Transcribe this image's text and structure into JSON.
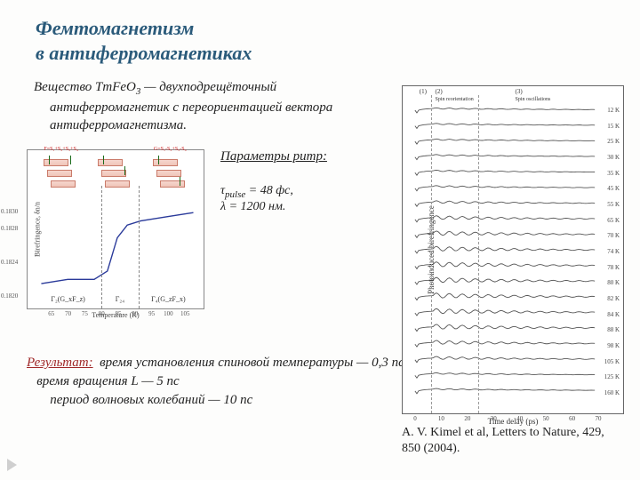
{
  "title": {
    "line1": "Фемтомагнетизм",
    "line2": "в антиферромагнетиках"
  },
  "substance_text": {
    "prefix": "Вещество TmFeO",
    "sub": "3",
    "suffix": " — двухподрещёточный антиферромагнетик с переориентацией вектора антиферромагнетизма."
  },
  "pump": {
    "heading": "Параметры pump:",
    "tau_label": "τ",
    "tau_sub": "pulse",
    "tau_val": " = 48 фс,",
    "lambda": "λ = 1200 нм."
  },
  "result": {
    "label": "Результат:",
    "line1": "время установления спиновой температуры —  0,3 пс",
    "line2": "время вращения L —  5 пс",
    "line3": "период волновых колебаний  — 10 пс"
  },
  "citation": "A. V. Kimel et al, Letters to Nature, 429, 850 (2004).",
  "left_chart": {
    "type": "line",
    "ylabel": "Birefringence, δn/n",
    "xlabel": "Temperature (K)",
    "xlim": [
      60,
      110
    ],
    "ylim": [
      0.182,
      0.1832
    ],
    "xticks": [
      65,
      70,
      75,
      80,
      85,
      90,
      95,
      100,
      105
    ],
    "yticks": [
      0.182,
      0.1824,
      0.1828,
      0.183
    ],
    "data_x": [
      62,
      70,
      78,
      82,
      85,
      88,
      92,
      100,
      108
    ],
    "data_y": [
      0.18215,
      0.1822,
      0.1822,
      0.1823,
      0.1827,
      0.18285,
      0.1829,
      0.18295,
      0.183
    ],
    "line_color": "#2a3a9a",
    "vdash_positions_K": [
      80,
      91
    ],
    "region_labels": [
      "Γ₂(G_xF_z)",
      "Γ₂₄",
      "Γ₄(G_zF_x)"
    ],
    "region_label_x_K": [
      70,
      85.5,
      100
    ],
    "diagram_top_labels": [
      "F=S₁+S₂+S₃+S₄",
      "",
      "G=S₁-S₂+S₃-S₄"
    ],
    "box_color": "#e8a998",
    "arrow_color": "#1a6b1a"
  },
  "right_chart": {
    "type": "line-stack",
    "ylabel": "Photoinduced birefringence",
    "xlabel": "Time delay (ps)",
    "xlim": [
      0,
      70
    ],
    "xticks": [
      0,
      10,
      20,
      30,
      40,
      50,
      60,
      70
    ],
    "temperatures_K": [
      12,
      15,
      25,
      30,
      35,
      45,
      55,
      65,
      70,
      74,
      78,
      80,
      82,
      84,
      88,
      98,
      105,
      125,
      160
    ],
    "top_regions": {
      "labels": [
        "(1)",
        "(2)",
        "(3)"
      ],
      "sublabels": [
        "",
        "Spin reorientation",
        "Spin oscillations"
      ],
      "x_ps": [
        3,
        15,
        45
      ],
      "vdash_ps": [
        6,
        24
      ]
    },
    "line_color": "#555555",
    "background": "#ffffff"
  },
  "colors": {
    "title": "#2a5a7a",
    "text": "#222222",
    "result_label": "#a02828"
  }
}
